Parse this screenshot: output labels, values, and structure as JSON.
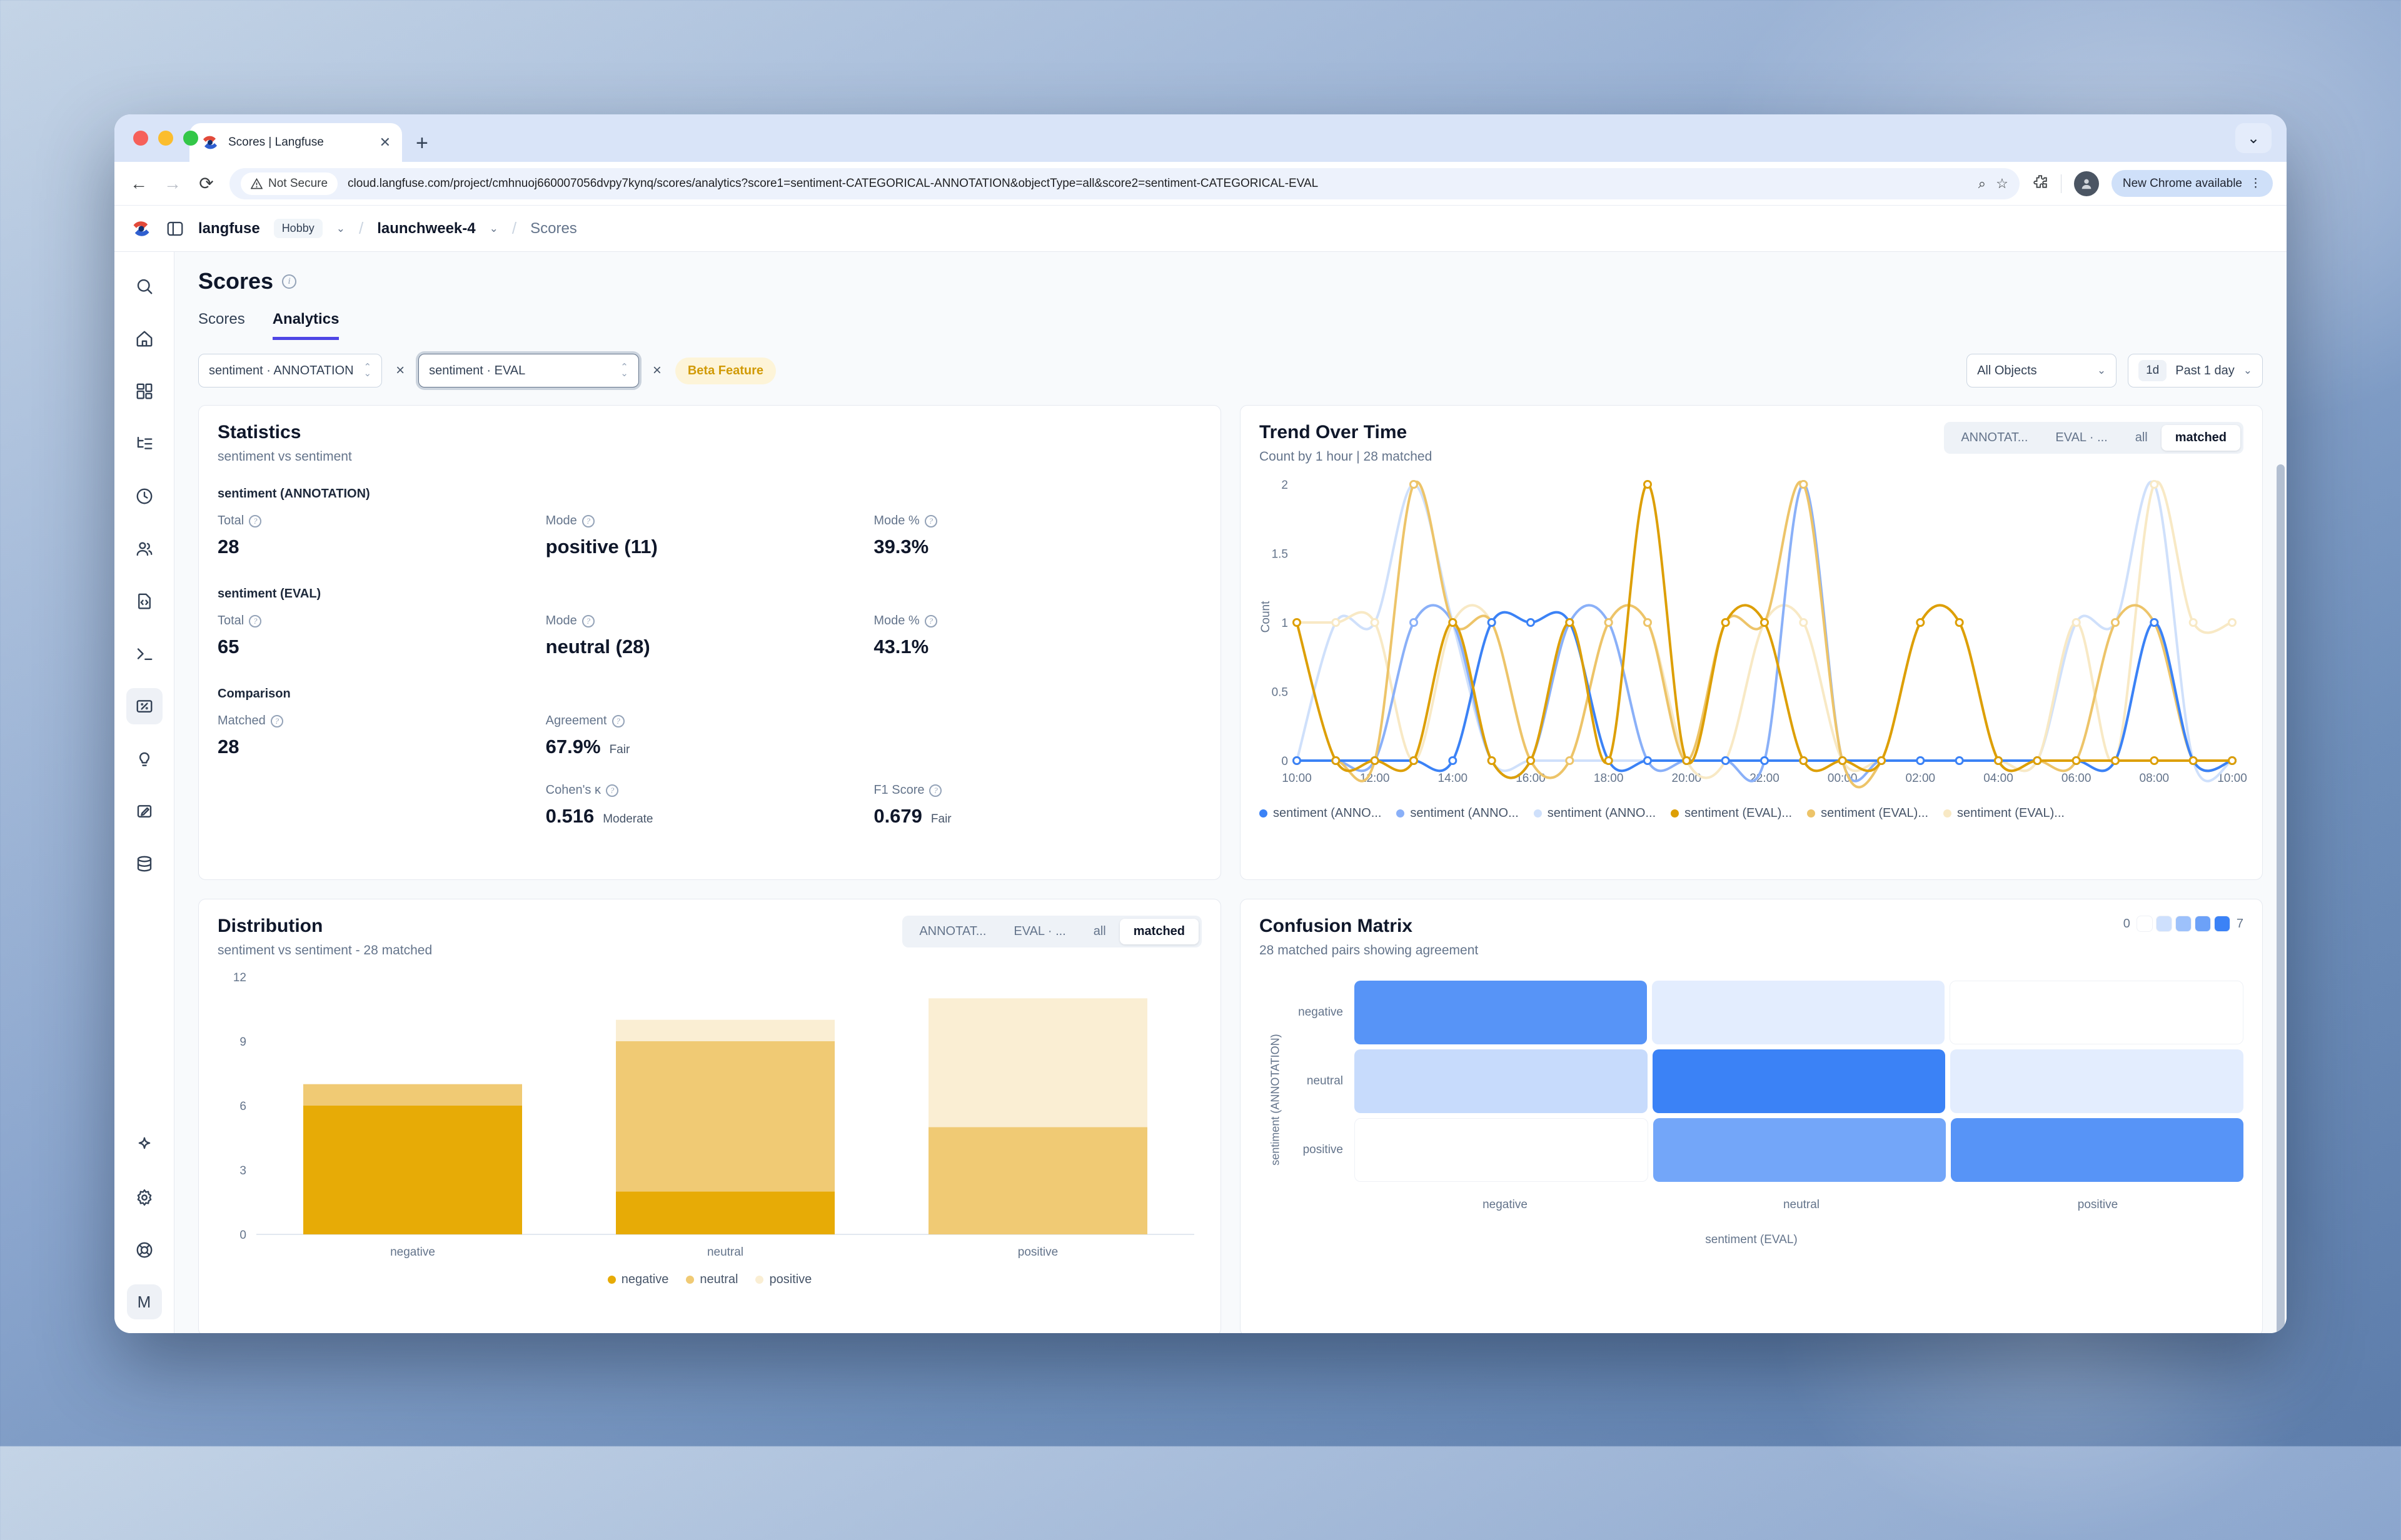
{
  "browser": {
    "tab_title": "Scores | Langfuse",
    "security_label": "Not Secure",
    "url": "cloud.langfuse.com/project/cmhnuoj660007056dvpy7kynq/scores/analytics?score1=sentiment-CATEGORICAL-ANNOTATION&objectType=all&score2=sentiment-CATEGORICAL-EVAL",
    "update_button": "New Chrome available",
    "avatar_initial": "M"
  },
  "header": {
    "org": "langfuse",
    "plan_badge": "Hobby",
    "project": "launchweek-4",
    "page": "Scores"
  },
  "sidebar": {
    "icon_names": [
      "search-icon",
      "home-icon",
      "dashboard-icon",
      "tracing-icon",
      "sessions-clock-icon",
      "users-icon",
      "prompts-file-code-icon",
      "playground-terminal-icon",
      "scores-percent-icon",
      "evaluators-lightbulb-icon",
      "annotation-clipboard-icon",
      "datasets-database-icon",
      "whats-new-sparkle-icon",
      "settings-gear-icon",
      "support-lifebuoy-icon"
    ],
    "avatar_initial": "M"
  },
  "page": {
    "title": "Scores",
    "tab_scores": "Scores",
    "tab_analytics": "Analytics"
  },
  "filters": {
    "score1": "sentiment · ANNOTATION",
    "score2": "sentiment · EVAL",
    "remove1": "×",
    "remove2": "×",
    "beta_badge": "Beta Feature",
    "object_filter": "All Objects",
    "range_short": "1d",
    "range_label": "Past 1 day"
  },
  "statistics": {
    "title": "Statistics",
    "subtitle": "sentiment vs sentiment",
    "group1": {
      "label": "sentiment (ANNOTATION)",
      "total_label": "Total",
      "total": "28",
      "mode_label": "Mode",
      "mode": "positive (11)",
      "modepct_label": "Mode %",
      "modepct": "39.3%"
    },
    "group2": {
      "label": "sentiment (EVAL)",
      "total_label": "Total",
      "total": "65",
      "mode_label": "Mode",
      "mode": "neutral (28)",
      "modepct_label": "Mode %",
      "modepct": "43.1%"
    },
    "comparison": {
      "label": "Comparison",
      "matched_label": "Matched",
      "matched": "28",
      "agreement_label": "Agreement",
      "agreement": "67.9%",
      "agreement_qual": "Fair",
      "kappa_label": "Cohen's κ",
      "kappa": "0.516",
      "kappa_qual": "Moderate",
      "f1_label": "F1 Score",
      "f1": "0.679",
      "f1_qual": "Fair"
    }
  },
  "trend_panel": {
    "title": "Trend Over Time",
    "subtitle": "Count by 1 hour | 28 matched",
    "tabs": [
      "ANNOTAT...",
      "EVAL · ...",
      "all",
      "matched"
    ],
    "active_tab": "matched"
  },
  "distribution_panel": {
    "title": "Distribution",
    "subtitle": "sentiment vs sentiment - 28 matched",
    "tabs": [
      "ANNOTAT...",
      "EVAL · ...",
      "all",
      "matched"
    ],
    "active_tab": "matched"
  },
  "confusion_panel": {
    "title": "Confusion Matrix",
    "subtitle": "28 matched pairs showing agreement",
    "scale_min": "0",
    "scale_max": "7"
  },
  "chart_data": [
    {
      "id": "trend",
      "type": "line",
      "title": "Trend Over Time",
      "ylabel": "Count",
      "ylim": [
        0,
        2
      ],
      "yticks": [
        0,
        0.5,
        1,
        1.5,
        2
      ],
      "x": [
        "10:00",
        "11:00",
        "12:00",
        "13:00",
        "14:00",
        "15:00",
        "16:00",
        "17:00",
        "18:00",
        "19:00",
        "20:00",
        "21:00",
        "22:00",
        "23:00",
        "00:00",
        "01:00",
        "02:00",
        "03:00",
        "04:00",
        "05:00",
        "06:00",
        "07:00",
        "08:00",
        "09:00",
        "10:00"
      ],
      "xtick_every": 2,
      "note": "values approximated from pixels; counts per hour",
      "series": [
        {
          "name": "sentiment (ANNO...",
          "color": "#cfe0fb",
          "values": [
            0,
            1,
            1,
            2,
            1,
            0,
            0,
            0,
            0,
            0,
            0,
            0,
            0,
            0,
            0,
            0,
            0,
            0,
            0,
            0,
            1,
            1,
            2,
            0,
            0
          ]
        },
        {
          "name": "sentiment (EVAL)...",
          "color": "#f8e9c5",
          "values": [
            1,
            1,
            1,
            0,
            1,
            1,
            0,
            0,
            1,
            1,
            0,
            0,
            1,
            1,
            0,
            0,
            0,
            0,
            0,
            0,
            1,
            0,
            2,
            1,
            1
          ]
        },
        {
          "name": "sentiment (ANNO...",
          "color": "#8ab0f8",
          "values": [
            0,
            0,
            0,
            1,
            1,
            0,
            0,
            1,
            1,
            0,
            0,
            0,
            0,
            2,
            0,
            0,
            0,
            0,
            0,
            0,
            0,
            0,
            1,
            0,
            0
          ]
        },
        {
          "name": "sentiment (EVAL)...",
          "color": "#edc469",
          "values": [
            0,
            0,
            0,
            2,
            1,
            1,
            0,
            0,
            1,
            1,
            0,
            1,
            1,
            2,
            0,
            0,
            1,
            1,
            0,
            0,
            0,
            1,
            1,
            0,
            0
          ]
        },
        {
          "name": "sentiment (ANNO...",
          "color": "#3b82f6",
          "values": [
            0,
            0,
            0,
            0,
            0,
            1,
            1,
            1,
            0,
            0,
            0,
            0,
            0,
            0,
            0,
            0,
            0,
            0,
            0,
            0,
            0,
            0,
            1,
            0,
            0
          ]
        },
        {
          "name": "sentiment (EVAL)...",
          "color": "#dd9f05",
          "values": [
            1,
            0,
            0,
            0,
            1,
            0,
            0,
            1,
            0,
            2,
            0,
            1,
            1,
            0,
            0,
            0,
            1,
            1,
            0,
            0,
            0,
            0,
            0,
            0,
            0
          ]
        }
      ],
      "legend_order": [
        4,
        2,
        0,
        5,
        3,
        1
      ],
      "legend_position": "bottom"
    },
    {
      "id": "distribution",
      "type": "bar",
      "stacked": true,
      "categories": [
        "negative",
        "neutral",
        "positive"
      ],
      "ylim": [
        0,
        12
      ],
      "yticks": [
        0,
        3,
        6,
        9,
        12
      ],
      "series": [
        {
          "name": "negative",
          "color": "#e7ab06",
          "values": [
            6,
            2,
            0
          ]
        },
        {
          "name": "neutral",
          "color": "#f0ca74",
          "values": [
            1,
            7,
            5
          ]
        },
        {
          "name": "positive",
          "color": "#faeed3",
          "values": [
            0,
            1,
            6
          ]
        }
      ],
      "legend_position": "bottom"
    },
    {
      "id": "confusion",
      "type": "heatmap",
      "xlabel": "sentiment (EVAL)",
      "ylabel": "sentiment (ANNOTATION)",
      "x": [
        "negative",
        "neutral",
        "positive"
      ],
      "y": [
        "negative",
        "neutral",
        "positive"
      ],
      "values": [
        [
          6,
          1,
          0
        ],
        [
          2,
          7,
          1
        ],
        [
          0,
          5,
          6
        ]
      ],
      "scale": {
        "min": 0,
        "max": 7,
        "low_color": "#ffffff",
        "high_color": "#3b82f6"
      }
    }
  ]
}
